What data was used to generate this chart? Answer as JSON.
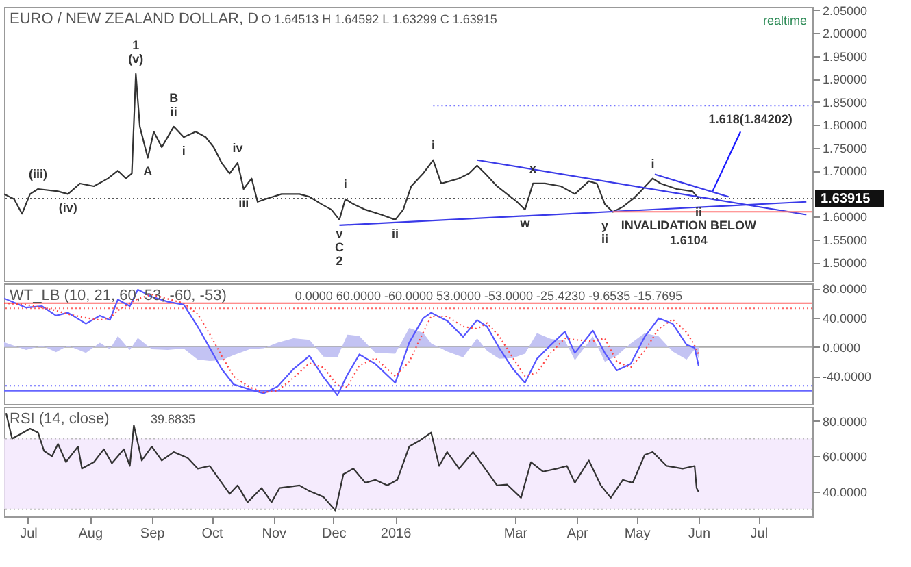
{
  "chart_data": [
    {
      "type": "line",
      "title": "EURO / NEW ZEALAND DOLLAR, D",
      "subtitle": "O 1.64513 H 1.64592 L 1.63299 C 1.63915",
      "x": [
        "2015-06-19",
        "2015-06-24",
        "2015-06-28",
        "2015-07-02",
        "2015-07-06",
        "2015-07-16",
        "2015-07-21",
        "2015-07-27",
        "2015-08-03",
        "2015-08-10",
        "2015-08-15",
        "2015-08-19",
        "2015-08-22",
        "2015-08-24",
        "2015-08-26",
        "2015-08-30",
        "2015-09-02",
        "2015-09-06",
        "2015-09-12",
        "2015-09-17",
        "2015-09-23",
        "2015-09-28",
        "2015-10-02",
        "2015-10-06",
        "2015-10-10",
        "2015-10-14",
        "2015-10-17",
        "2015-10-21",
        "2015-10-24",
        "2015-10-28",
        "2015-11-05",
        "2015-11-14",
        "2015-11-19",
        "2015-11-25",
        "2015-11-30",
        "2015-12-04",
        "2015-12-07",
        "2015-12-11",
        "2015-12-17",
        "2015-12-25",
        "2016-01-01",
        "2016-01-05",
        "2016-01-09",
        "2016-01-15",
        "2016-01-20",
        "2016-01-24",
        "2016-02-02",
        "2016-02-07",
        "2016-02-11",
        "2016-02-15",
        "2016-02-21",
        "2016-02-26",
        "2016-03-02",
        "2016-03-06",
        "2016-03-10",
        "2016-03-16",
        "2016-03-24",
        "2016-03-31",
        "2016-04-07",
        "2016-04-11",
        "2016-04-15",
        "2016-04-19",
        "2016-04-24",
        "2016-04-29",
        "2016-05-03",
        "2016-05-09",
        "2016-05-13",
        "2016-05-21",
        "2016-05-29",
        "2016-06-01"
      ],
      "series": [
        {
          "color": "#333333",
          "line_style": "solid",
          "values": [
            1.649,
            1.638,
            1.606,
            1.649,
            1.66,
            1.655,
            1.649,
            1.672,
            1.666,
            1.683,
            1.7,
            1.683,
            1.694,
            1.911,
            1.796,
            1.728,
            1.785,
            1.751,
            1.796,
            1.773,
            1.785,
            1.773,
            1.751,
            1.717,
            1.694,
            1.717,
            1.66,
            1.683,
            1.632,
            1.638,
            1.649,
            1.649,
            1.643,
            1.627,
            1.615,
            1.593,
            1.638,
            1.627,
            1.615,
            1.604,
            1.593,
            1.615,
            1.666,
            1.694,
            1.723,
            1.672,
            1.683,
            1.694,
            1.711,
            1.694,
            1.666,
            1.649,
            1.632,
            1.615,
            1.672,
            1.672,
            1.666,
            1.649,
            1.677,
            1.672,
            1.627,
            1.61,
            1.621,
            1.638,
            1.655,
            1.683,
            1.672,
            1.66,
            1.655,
            1.63915
          ]
        },
        {
          "type": "line",
          "color": "#3a3ae8",
          "line_style": "solid",
          "x": [
            "2016-02-11",
            "2016-07-25"
          ],
          "values": [
            1.723,
            1.604
          ]
        },
        {
          "type": "line",
          "color": "#3a3ae8",
          "line_style": "solid",
          "x": [
            "2015-12-04",
            "2016-07-25"
          ],
          "values": [
            1.581,
            1.632
          ]
        },
        {
          "type": "line",
          "color": "#3a3ae8",
          "line_style": "solid",
          "x": [
            "2016-05-10",
            "2016-06-16"
          ],
          "values": [
            1.692,
            1.643
          ]
        },
        {
          "type": "line",
          "color": "#1a1aff",
          "line_style": "solid",
          "x": [
            "2016-06-08",
            "2016-06-22"
          ],
          "values": [
            1.655,
            1.785
          ]
        },
        {
          "type": "line",
          "color": "#7777ff",
          "line_style": "dotted",
          "x": [
            "2016-01-20",
            "2016-07-28"
          ],
          "values": [
            1.84202,
            1.84202
          ]
        },
        {
          "type": "line",
          "color": "#ff7777",
          "line_style": "solid",
          "x": [
            "2016-04-19",
            "2016-07-28"
          ],
          "values": [
            1.6104,
            1.6104
          ]
        }
      ],
      "ref_lines": [
        {
          "axis": "y",
          "value": 1.63915,
          "label": "1.63915",
          "color": "#555555",
          "line_style": "dotted"
        }
      ],
      "annotations": [
        "realtime",
        {
          "text": "(v)",
          "x": "2015-08-24",
          "y": 1.911
        },
        {
          "text": "1",
          "x": "2015-08-24",
          "y": 1.911
        },
        {
          "text": "ii",
          "x": "2015-09-12",
          "y": 1.796
        },
        {
          "text": "B",
          "x": "2015-09-12",
          "y": 1.796
        },
        {
          "text": "A",
          "x": "2015-08-30",
          "y": 1.728
        },
        {
          "text": "i",
          "x": "2015-09-17",
          "y": 1.773
        },
        {
          "text": "iv",
          "x": "2015-10-14",
          "y": 1.717
        },
        {
          "text": "iii",
          "x": "2015-10-17",
          "y": 1.66
        },
        {
          "text": "(iii)",
          "x": "2015-07-06",
          "y": 1.66
        },
        {
          "text": "(iv)",
          "x": "2015-07-21",
          "y": 1.649
        },
        {
          "text": "i",
          "x": "2015-12-07",
          "y": 1.638
        },
        {
          "text": "v",
          "x": "2015-12-04",
          "y": 1.593
        },
        {
          "text": "C",
          "x": "2015-12-04",
          "y": 1.593
        },
        {
          "text": "2",
          "x": "2015-12-04",
          "y": 1.593
        },
        {
          "text": "ii",
          "x": "2016-01-01",
          "y": 1.593
        },
        {
          "text": "i",
          "x": "2016-01-20",
          "y": 1.723
        },
        {
          "text": "x",
          "x": "2016-03-10",
          "y": 1.672
        },
        {
          "text": "w",
          "x": "2016-03-06",
          "y": 1.615
        },
        {
          "text": "y",
          "x": "2016-04-15",
          "y": 1.61
        },
        {
          "text": "ii",
          "x": "2016-04-15",
          "y": 1.61
        },
        {
          "text": "i",
          "x": "2016-05-09",
          "y": 1.683
        },
        {
          "text": "ii",
          "x": "2016-06-01",
          "y": 1.63915
        },
        {
          "text": "1.618(1.84202)",
          "x": "2016-06-27",
          "y": 1.84202
        },
        {
          "text": "INVALIDATION BELOW\n1.6104",
          "x": "2016-05-27",
          "y": 1.6104
        }
      ],
      "xlim": [
        "2015-06-19",
        "2016-07-28"
      ],
      "ylim": [
        1.46,
        2.057
      ],
      "yticks": [
        {
          "value": 1.5,
          "label": "1.50000"
        },
        {
          "value": 1.55,
          "label": "1.55000"
        },
        {
          "value": 1.6,
          "label": "1.60000"
        },
        {
          "value": 1.7,
          "label": "1.70000"
        },
        {
          "value": 1.75,
          "label": "1.75000"
        },
        {
          "value": 1.8,
          "label": "1.80000"
        },
        {
          "value": 1.85,
          "label": "1.85000"
        },
        {
          "value": 1.9,
          "label": "1.90000"
        },
        {
          "value": 1.95,
          "label": "1.95000"
        },
        {
          "value": 2.0,
          "label": "2.00000"
        },
        {
          "value": 2.05,
          "label": "2.05000"
        }
      ],
      "tick_labels": "y",
      "grid": false,
      "marker": "none"
    },
    {
      "type": "line",
      "title": "WT_LB (10, 21, 60, 53, -60, -53)",
      "subtitle": "0.0000 60.0000 -60.0000 53.0000 -53.0000 -25.4230 -9.6535 -15.7695",
      "x": [
        "2015-06-19",
        "2015-06-30",
        "2015-07-08",
        "2015-07-15",
        "2015-07-21",
        "2015-07-30",
        "2015-08-06",
        "2015-08-11",
        "2015-08-15",
        "2015-08-21",
        "2015-08-25",
        "2015-09-01",
        "2015-09-09",
        "2015-09-17",
        "2015-09-24",
        "2015-09-30",
        "2015-10-06",
        "2015-10-12",
        "2015-10-20",
        "2015-10-27",
        "2015-11-03",
        "2015-11-11",
        "2015-11-19",
        "2015-11-26",
        "2015-12-03",
        "2015-12-08",
        "2015-12-14",
        "2015-12-22",
        "2016-01-01",
        "2016-01-08",
        "2016-01-15",
        "2016-01-19",
        "2016-01-27",
        "2016-02-04",
        "2016-02-11",
        "2016-02-16",
        "2016-02-22",
        "2016-02-29",
        "2016-03-06",
        "2016-03-12",
        "2016-03-19",
        "2016-03-26",
        "2016-03-31",
        "2016-04-09",
        "2016-04-15",
        "2016-04-21",
        "2016-04-28",
        "2016-05-05",
        "2016-05-12",
        "2016-05-19",
        "2016-05-26",
        "2016-05-30",
        "2016-06-01"
      ],
      "series": [
        {
          "type": "area",
          "color": "#c3c3f3",
          "values": [
            6.7,
            -4,
            2,
            -7,
            2,
            -8,
            6,
            -3,
            15,
            -4,
            12.5,
            -3,
            -4,
            -2,
            -17,
            -19,
            -18,
            -11,
            -3,
            -1.5,
            6,
            12,
            10,
            -13,
            -14,
            17,
            15,
            -8,
            -9,
            26,
            19.5,
            5,
            -6,
            -14,
            12,
            -5,
            -16,
            -15,
            -9,
            19,
            11,
            9,
            -18,
            14.5,
            -20,
            -12,
            5,
            19,
            14.5,
            -6,
            -17,
            -3,
            -15.7695
          ]
        },
        {
          "type": "line",
          "color": "#5555ff",
          "line_style": "solid",
          "values": [
            66.7,
            54,
            56,
            43,
            47,
            32,
            43,
            37,
            65,
            56,
            78.5,
            69,
            62,
            58,
            28,
            -1,
            -30,
            -51,
            -58,
            -63.5,
            -54,
            -30,
            -12,
            -41,
            -66,
            -38,
            -10,
            -23,
            -49,
            6,
            39.5,
            47,
            36,
            14,
            37,
            28,
            -1,
            -30,
            -49,
            -16,
            3,
            21,
            -8,
            22.5,
            -8,
            -32,
            -23,
            14,
            39.5,
            32,
            3,
            -1,
            -25.423
          ]
        },
        {
          "type": "line",
          "color": "#ff4444",
          "line_style": "dotted",
          "values": [
            60,
            58,
            54,
            50,
            45,
            40,
            37,
            40,
            50,
            60,
            66,
            72,
            66,
            60,
            45,
            18,
            -12,
            -40,
            -55,
            -62,
            -60,
            -42,
            -22,
            -28,
            -52,
            -55,
            -25,
            -15,
            -40,
            -20,
            20,
            42,
            42,
            28,
            25,
            33,
            15,
            -15,
            -40,
            -35,
            -8,
            12,
            10,
            8,
            12,
            -20,
            -28,
            -5,
            25,
            38,
            20,
            2,
            -9.6535
          ]
        }
      ],
      "ref_lines": [
        {
          "axis": "y",
          "value": 60,
          "color": "#ff6666",
          "line_style": "solid"
        },
        {
          "axis": "y",
          "value": 53,
          "color": "#ff6666",
          "line_style": "dotted"
        },
        {
          "axis": "y",
          "value": -60,
          "color": "#6666ff",
          "line_style": "solid"
        },
        {
          "axis": "y",
          "value": -53,
          "color": "#6666ff",
          "line_style": "dotted"
        },
        {
          "axis": "y",
          "value": 0,
          "color": "#aaaaaa",
          "line_style": "solid"
        }
      ],
      "xlim": [
        "2015-06-19",
        "2016-07-28"
      ],
      "ylim": [
        -78,
        87
      ],
      "yticks": [
        {
          "value": 80,
          "label": "80.0000"
        },
        {
          "value": 40,
          "label": "40.0000"
        },
        {
          "value": 0,
          "label": "0.0000"
        },
        {
          "value": -40,
          "label": "-40.0000"
        }
      ],
      "tick_labels": "y",
      "grid": false,
      "marker": "none"
    },
    {
      "type": "line",
      "title": "RSI (14, close)",
      "subtitle": "39.8835",
      "x": [
        "2015-06-20",
        "2015-06-23",
        "2015-06-27",
        "2015-07-02",
        "2015-07-06",
        "2015-07-09",
        "2015-07-13",
        "2015-07-16",
        "2015-07-20",
        "2015-07-26",
        "2015-07-28",
        "2015-08-03",
        "2015-08-08",
        "2015-08-12",
        "2015-08-18",
        "2015-08-21",
        "2015-08-23",
        "2015-08-27",
        "2015-09-01",
        "2015-09-06",
        "2015-09-12",
        "2015-09-19",
        "2015-09-24",
        "2015-09-30",
        "2015-10-06",
        "2015-10-10",
        "2015-10-14",
        "2015-10-19",
        "2015-10-26",
        "2015-10-31",
        "2015-11-04",
        "2015-11-14",
        "2015-11-19",
        "2015-11-26",
        "2015-12-02",
        "2015-12-06",
        "2015-12-11",
        "2015-12-17",
        "2015-12-22",
        "2015-12-28",
        "2016-01-02",
        "2016-01-08",
        "2016-01-13",
        "2016-01-19",
        "2016-01-23",
        "2016-01-27",
        "2016-02-02",
        "2016-02-09",
        "2016-02-15",
        "2016-02-21",
        "2016-02-26",
        "2016-03-04",
        "2016-03-09",
        "2016-03-15",
        "2016-03-22",
        "2016-03-27",
        "2016-03-31",
        "2016-04-07",
        "2016-04-13",
        "2016-04-18",
        "2016-04-24",
        "2016-04-29",
        "2016-05-05",
        "2016-05-09",
        "2016-05-16",
        "2016-05-24",
        "2016-05-30",
        "2016-05-31",
        "2016-06-01"
      ],
      "series": [
        {
          "color": "#333333",
          "line_style": "solid",
          "values": [
            84.4,
            70,
            72.4,
            75.6,
            73.4,
            63,
            60,
            67,
            56.7,
            65.5,
            53,
            56.7,
            64,
            56,
            64,
            54.5,
            77.5,
            57.6,
            65.5,
            57.6,
            62.4,
            59,
            53,
            54.5,
            45,
            38.7,
            43.5,
            34,
            42,
            34,
            42,
            43.5,
            40.3,
            37,
            29.3,
            49.8,
            53,
            45,
            46.6,
            43.5,
            46.6,
            65.5,
            68.7,
            73.4,
            54.5,
            62.4,
            53,
            62.4,
            53,
            43.5,
            44,
            36.5,
            56.7,
            51.3,
            53,
            54.5,
            45,
            57.6,
            43.5,
            36.5,
            46.6,
            45,
            60.8,
            62.4,
            54.5,
            53,
            54.5,
            42,
            39.8835
          ]
        }
      ],
      "bands": [
        {
          "axis": "y",
          "from": 30,
          "to": 70,
          "color": "#f3e6fc"
        }
      ],
      "ref_lines": [
        {
          "axis": "y",
          "value": 70,
          "color": "#bbbbbb",
          "line_style": "dotted"
        },
        {
          "axis": "y",
          "value": 30,
          "color": "#bbbbbb",
          "line_style": "dotted"
        }
      ],
      "xlim": [
        "2015-06-19",
        "2016-07-28"
      ],
      "xticks": [
        {
          "value": "2015-07-01",
          "label": "Jul"
        },
        {
          "value": "2015-08-01",
          "label": "Aug"
        },
        {
          "value": "2015-09-01",
          "label": "Sep"
        },
        {
          "value": "2015-10-01",
          "label": "Oct"
        },
        {
          "value": "2015-11-01",
          "label": "Nov"
        },
        {
          "value": "2015-12-01",
          "label": "Dec"
        },
        {
          "value": "2016-01-01",
          "label": "2016"
        },
        {
          "value": "2016-03-01",
          "label": "Mar"
        },
        {
          "value": "2016-04-01",
          "label": "Apr"
        },
        {
          "value": "2016-05-01",
          "label": "May"
        },
        {
          "value": "2016-06-01",
          "label": "Jun"
        },
        {
          "value": "2016-07-01",
          "label": "Jul"
        }
      ],
      "ylim": [
        26,
        88
      ],
      "yticks": [
        {
          "value": 80,
          "label": "80.0000"
        },
        {
          "value": 60,
          "label": "60.0000"
        },
        {
          "value": 40,
          "label": "40.0000"
        }
      ],
      "grid": false,
      "marker": "none"
    }
  ]
}
